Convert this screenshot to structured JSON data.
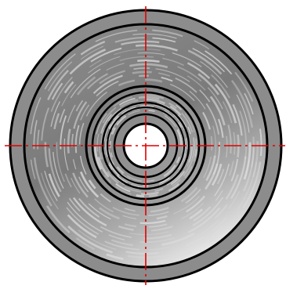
{
  "drawing": {
    "view": "end-view",
    "concentric_outlines": 8,
    "centerline_style": "dash-dot",
    "surface_style": "shaded-arc-hatching"
  },
  "colors": {
    "outline": "#000000",
    "centerline": "#e00000",
    "body_dark": "#6e6e6e",
    "body_mid": "#9a9a9a",
    "body_light": "#f2f2f2",
    "hatch": "#dcdcdc",
    "background": "#ffffff"
  }
}
